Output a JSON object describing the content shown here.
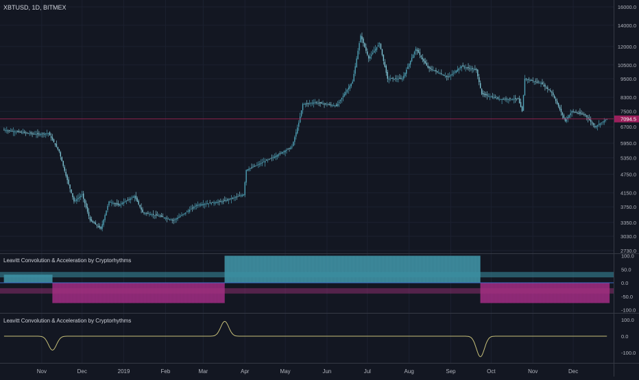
{
  "header": {
    "symbol_line": "XBTUSD, 1D, BITMEX"
  },
  "price": {
    "last_label": "7094.5"
  },
  "indicators": [
    {
      "title": "Leavitt Convolution & Acceleration by Cryptorhythms",
      "y_ticks": [
        "100.0",
        "50.0",
        "0.0",
        "-50.0",
        "-100.0"
      ]
    },
    {
      "title": "Leavitt Convolution & Acceleration by Cryptorhythms",
      "y_ticks": [
        "100.0",
        "0.0",
        "-100.0"
      ]
    }
  ],
  "colors": {
    "background": "#131722",
    "candles": "#4fa3b8",
    "pos_fill": "#3a8fa3",
    "neg_fill": "#9c2a7e",
    "osc_line": "#c9c27a",
    "price_line": "#b5245a",
    "last_price_tag": "#9c1f5c"
  },
  "chart_data": [
    {
      "type": "candlestick",
      "title": "XBTUSD, 1D, BITMEX",
      "x_ticks": [
        "Nov",
        "Dec",
        "2019",
        "Feb",
        "Mar",
        "Apr",
        "May",
        "Jun",
        "Jul",
        "Aug",
        "Sep",
        "Oct",
        "Nov",
        "Dec"
      ],
      "y_ticks": [
        16000,
        14000,
        12000,
        10500,
        9500,
        8300,
        7500,
        6700,
        5950,
        5350,
        4750,
        4150,
        3750,
        3350,
        3030,
        2730
      ],
      "y_tick_labels": [
        "16000.0",
        "14000.0",
        "12000.0",
        "10500.0",
        "9500.0",
        "8300.0",
        "7500.0",
        "6700.0",
        "5950.0",
        "5350.0",
        "4750.0",
        "4150.0",
        "3750.0",
        "3350.0",
        "3030.0",
        "2730.0"
      ],
      "y_scale": "log",
      "last_price": 7094.5,
      "close_path": [
        [
          "2018-10-04",
          6550
        ],
        [
          "2018-10-15",
          6450
        ],
        [
          "2018-10-29",
          6350
        ],
        [
          "2018-11-06",
          6400
        ],
        [
          "2018-11-14",
          5600
        ],
        [
          "2018-11-19",
          4700
        ],
        [
          "2018-11-25",
          3900
        ],
        [
          "2018-12-01",
          4100
        ],
        [
          "2018-12-07",
          3400
        ],
        [
          "2018-12-15",
          3200
        ],
        [
          "2018-12-21",
          3900
        ],
        [
          "2018-12-28",
          3800
        ],
        [
          "2019-01-09",
          4050
        ],
        [
          "2019-01-15",
          3600
        ],
        [
          "2019-01-28",
          3500
        ],
        [
          "2019-02-07",
          3400
        ],
        [
          "2019-02-16",
          3600
        ],
        [
          "2019-02-24",
          3800
        ],
        [
          "2019-03-15",
          3900
        ],
        [
          "2019-03-31",
          4100
        ],
        [
          "2019-04-02",
          4900
        ],
        [
          "2019-04-23",
          5400
        ],
        [
          "2019-05-06",
          5800
        ],
        [
          "2019-05-11",
          6900
        ],
        [
          "2019-05-14",
          7900
        ],
        [
          "2019-05-23",
          8000
        ],
        [
          "2019-06-08",
          7800
        ],
        [
          "2019-06-20",
          9300
        ],
        [
          "2019-06-26",
          13000
        ],
        [
          "2019-07-02",
          11000
        ],
        [
          "2019-07-10",
          12300
        ],
        [
          "2019-07-16",
          9500
        ],
        [
          "2019-07-27",
          9500
        ],
        [
          "2019-08-06",
          11800
        ],
        [
          "2019-08-15",
          10300
        ],
        [
          "2019-08-30",
          9600
        ],
        [
          "2019-09-09",
          10400
        ],
        [
          "2019-09-20",
          10100
        ],
        [
          "2019-09-24",
          8500
        ],
        [
          "2019-10-07",
          8200
        ],
        [
          "2019-10-21",
          8200
        ],
        [
          "2019-10-24",
          7500
        ],
        [
          "2019-10-26",
          9500
        ],
        [
          "2019-11-07",
          9200
        ],
        [
          "2019-11-15",
          8600
        ],
        [
          "2019-11-25",
          7000
        ],
        [
          "2019-11-30",
          7500
        ],
        [
          "2019-12-10",
          7300
        ],
        [
          "2019-12-17",
          6700
        ],
        [
          "2019-12-26",
          7094.5
        ]
      ]
    },
    {
      "type": "bar",
      "title": "Leavitt Convolution & Acceleration by Cryptorhythms",
      "y_ticks": [
        100,
        50,
        0,
        -50,
        -100
      ],
      "segments": [
        {
          "from": "2018-10-04",
          "to": "2018-11-09",
          "value": 30
        },
        {
          "from": "2018-11-09",
          "to": "2019-03-17",
          "value": -75
        },
        {
          "from": "2019-03-17",
          "to": "2019-09-23",
          "value": 100
        },
        {
          "from": "2019-09-23",
          "to": "2019-12-28",
          "value": -75
        }
      ]
    },
    {
      "type": "line",
      "title": "Leavitt Convolution & Acceleration by Cryptorhythms",
      "y_ticks": [
        100,
        0,
        -100
      ],
      "spikes": [
        {
          "date": "2018-11-09",
          "value": -85
        },
        {
          "date": "2019-03-17",
          "value": 90
        },
        {
          "date": "2019-09-23",
          "value": -125
        }
      ]
    }
  ]
}
